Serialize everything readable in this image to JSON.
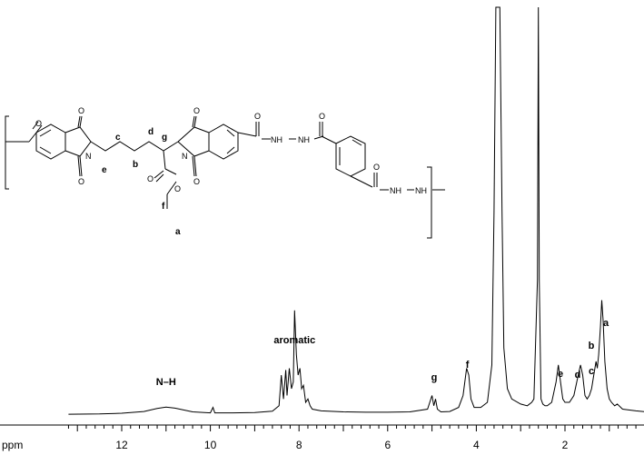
{
  "chart_data": {
    "type": "line",
    "title": "",
    "xlabel": "ppm",
    "ylabel": "",
    "x_reversed": true,
    "xlim": [
      13.2,
      0.0
    ],
    "x_ticks": [
      12,
      10,
      8,
      6,
      4,
      2
    ],
    "x_tick_labels": [
      "12",
      "10",
      "8",
      "6",
      "4",
      "2"
    ],
    "grid": false,
    "series": [
      {
        "x": [
          13.2,
          12.5,
          12.0,
          11.5,
          11.2,
          11.0,
          10.8,
          10.4,
          10.0,
          9.94,
          9.9,
          9.5,
          9.0,
          8.6,
          8.45,
          8.4,
          8.35,
          8.3,
          8.27,
          8.22,
          8.17,
          8.13,
          8.1,
          8.06,
          8.02,
          7.98,
          7.94,
          7.9,
          7.85,
          7.8,
          7.75,
          7.7,
          7.5,
          7.0,
          6.5,
          6.0,
          5.5,
          5.1,
          5.0,
          4.96,
          4.92,
          4.88,
          4.8,
          4.6,
          4.4,
          4.3,
          4.22,
          4.17,
          4.12,
          4.05,
          3.9,
          3.75,
          3.65,
          3.6,
          3.56,
          3.52,
          3.47,
          3.42,
          3.38,
          3.3,
          3.2,
          3.0,
          2.85,
          2.75,
          2.7,
          2.62,
          2.6,
          2.58,
          2.54,
          2.5,
          2.45,
          2.4,
          2.3,
          2.2,
          2.15,
          2.1,
          2.05,
          2.0,
          1.9,
          1.8,
          1.7,
          1.65,
          1.6,
          1.55,
          1.5,
          1.45,
          1.4,
          1.35,
          1.3,
          1.27,
          1.24,
          1.2,
          1.17,
          1.14,
          1.1,
          1.05,
          1.0,
          0.95,
          0.88,
          0.82,
          0.7,
          0.4,
          0.0
        ],
        "y": [
          0.5,
          0.6,
          0.8,
          1.3,
          2.2,
          2.6,
          2.3,
          1.2,
          0.9,
          2.5,
          0.9,
          0.9,
          1.0,
          1.4,
          3.0,
          12.0,
          5.0,
          13.5,
          6.0,
          14.0,
          8.0,
          10.0,
          31.0,
          18.0,
          12.0,
          14.0,
          8.0,
          9.0,
          4.0,
          5.0,
          3.0,
          2.0,
          1.5,
          1.2,
          1.1,
          1.1,
          1.2,
          2.0,
          6.0,
          3.0,
          5.0,
          2.0,
          1.2,
          1.3,
          2.5,
          6.0,
          14.0,
          12.0,
          5.0,
          2.5,
          2.5,
          4.0,
          15.0,
          60.0,
          120.0,
          120.0,
          120.0,
          60.0,
          20.0,
          8.0,
          5.0,
          3.5,
          3.0,
          4.0,
          5.0,
          40.0,
          120.0,
          40.0,
          5.0,
          3.5,
          3.0,
          3.0,
          4.0,
          10.0,
          15.0,
          10.0,
          5.0,
          4.0,
          4.0,
          6.0,
          12.0,
          15.0,
          12.0,
          6.0,
          5.0,
          6.0,
          8.0,
          12.0,
          16.0,
          14.0,
          18.0,
          26.0,
          34.0,
          28.0,
          16.0,
          8.0,
          5.0,
          4.0,
          3.0,
          3.5,
          2.0,
          1.5,
          1.0
        ]
      }
    ],
    "annotations": [
      {
        "text": "N–H",
        "x": 11.0
      },
      {
        "text": "aromatic",
        "x": 8.1
      },
      {
        "text": "g",
        "x": 4.95
      },
      {
        "text": "f",
        "x": 4.2
      },
      {
        "text": "e",
        "x": 2.1
      },
      {
        "text": "d",
        "x": 1.62
      },
      {
        "text": "c",
        "x": 1.3
      },
      {
        "text": "b",
        "x": 1.25
      },
      {
        "text": "a",
        "x": 1.1
      }
    ]
  },
  "structure": {
    "atom_labels": {
      "carbonyl": "O",
      "ring_nitrogen": "N",
      "amide": "NH",
      "ester_oxygen": "O"
    },
    "position_labels": [
      "a",
      "b",
      "c",
      "d",
      "e",
      "f",
      "g"
    ]
  }
}
